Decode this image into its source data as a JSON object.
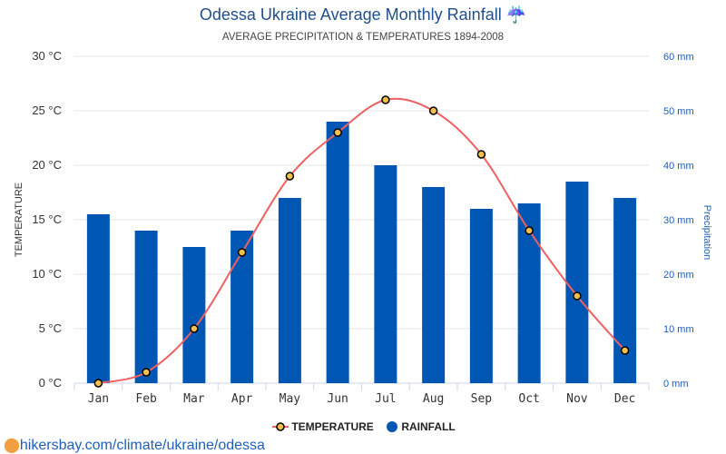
{
  "title": "Odessa Ukraine Average Monthly Rainfall",
  "title_icon": "umbrella-rain-icon",
  "subtitle": "AVERAGE PRECIPITATION & TEMPERATURES 1894-2008",
  "source": "hikersbay.com/climate/ukraine/odessa",
  "colors": {
    "bar": "#0057b3",
    "line": "#f06060",
    "marker": "#f5c04a",
    "title": "#1f4e8c"
  },
  "chart_data": {
    "type": "bar+line",
    "categories": [
      "Jan",
      "Feb",
      "Mar",
      "Apr",
      "May",
      "Jun",
      "Jul",
      "Aug",
      "Sep",
      "Oct",
      "Nov",
      "Dec"
    ],
    "series": [
      {
        "name": "TEMPERATURE",
        "type": "line",
        "axis": "left",
        "values": [
          0,
          1,
          5,
          12,
          19,
          23,
          26,
          25,
          21,
          14,
          8,
          3
        ]
      },
      {
        "name": "RAINFALL",
        "type": "bar",
        "axis": "right",
        "values": [
          31,
          28,
          25,
          28,
          34,
          48,
          40,
          36,
          32,
          33,
          37,
          34
        ]
      }
    ],
    "ylabel_left": "TEMPERATURE",
    "ylabel_right": "Precipitation",
    "ylim_left": [
      0,
      30
    ],
    "ylim_right": [
      0,
      60
    ],
    "yticks_left": [
      "0 °C",
      "5 °C",
      "10 °C",
      "15 °C",
      "20 °C",
      "25 °C",
      "30 °C"
    ],
    "yticks_right": [
      "0 mm",
      "10 mm",
      "20 mm",
      "30 mm",
      "40 mm",
      "50 mm",
      "60 mm"
    ],
    "grid": true,
    "legend": "bottom"
  }
}
